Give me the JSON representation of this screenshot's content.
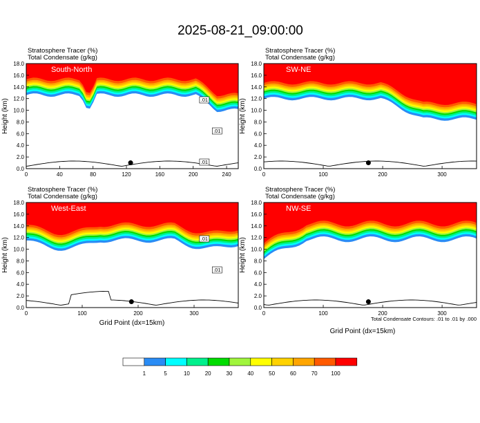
{
  "figure": {
    "title": "2025-08-21_09:00:00",
    "x_axis_label": "Grid Point (dx=15km)",
    "y_axis_label": "Height (km)",
    "contour_note": "Total Condensate Contours: .01 to .01 by .000"
  },
  "colorbar": {
    "labels": [
      "1",
      "5",
      "10",
      "20",
      "30",
      "40",
      "50",
      "60",
      "70",
      "100"
    ],
    "colors": [
      "#ffffff",
      "#2a8cf5",
      "#00ffff",
      "#00f08c",
      "#00dc00",
      "#a0f53c",
      "#ffff00",
      "#ffd200",
      "#ffa500",
      "#ff5a00",
      "#ff0000"
    ]
  },
  "chart_data": [
    {
      "type": "contour",
      "panel_label": "South-North",
      "header_line1": "Stratosphere Tracer   (%)",
      "header_line2": "Total Condensate   (g/kg)",
      "x_ticks": [
        "0",
        "40",
        "80",
        "120",
        "160",
        "200",
        "240"
      ],
      "xlim": [
        0,
        254
      ],
      "y_ticks": [
        "0.0",
        "2.0",
        "4.0",
        "6.0",
        "8.0",
        "10.0",
        "12.0",
        "14.0",
        "16.0",
        "18.0"
      ],
      "ylim": [
        0,
        18
      ],
      "contour_labels": [
        ".01",
        ".01",
        ".01"
      ],
      "marker_x": 125
    },
    {
      "type": "contour",
      "panel_label": "SW-NE",
      "header_line1": "Stratosphere Tracer   (%)",
      "header_line2": "Total Condensate   (g/kg)",
      "x_ticks": [
        "0",
        "100",
        "200",
        "300"
      ],
      "xlim": [
        0,
        358
      ],
      "y_ticks": [
        "0.0",
        "2.0",
        "4.0",
        "6.0",
        "8.0",
        "10.0",
        "12.0",
        "14.0",
        "16.0",
        "18.0"
      ],
      "ylim": [
        0,
        18
      ],
      "contour_labels": [],
      "marker_x": 176
    },
    {
      "type": "contour",
      "panel_label": "West-East",
      "header_line1": "Stratosphere Tracer   (%)",
      "header_line2": "Total Condensate   (g/kg)",
      "x_ticks": [
        "0",
        "100",
        "200",
        "300"
      ],
      "xlim": [
        0,
        379
      ],
      "y_ticks": [
        "0.0",
        "2.0",
        "4.0",
        "6.0",
        "8.0",
        "10.0",
        "12.0",
        "14.0",
        "16.0",
        "18.0"
      ],
      "ylim": [
        0,
        18
      ],
      "contour_labels": [
        ".01",
        ".01"
      ],
      "marker_x": 188
    },
    {
      "type": "contour",
      "panel_label": "NW-SE",
      "header_line1": "Stratosphere Tracer   (%)",
      "header_line2": "Total Condensate   (g/kg)",
      "x_ticks": [
        "0",
        "100",
        "200",
        "300"
      ],
      "xlim": [
        0,
        358
      ],
      "y_ticks": [
        "0.0",
        "2.0",
        "4.0",
        "6.0",
        "8.0",
        "10.0",
        "12.0",
        "14.0",
        "16.0",
        "18.0"
      ],
      "ylim": [
        0,
        18
      ],
      "contour_labels": [],
      "marker_x": 176
    }
  ]
}
